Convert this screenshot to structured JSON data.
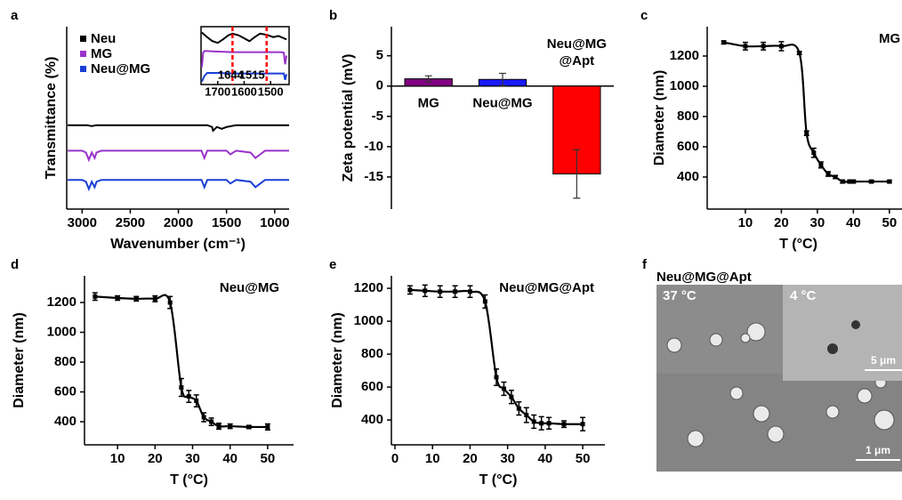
{
  "chart_data": [
    {
      "type": "spectrum",
      "panel_label": "a",
      "x_label": "Wavenumber (cm⁻¹)",
      "y_label": "Transmittance (%)",
      "xlim": [
        3160,
        850
      ],
      "xticks": [
        3000,
        2500,
        2000,
        1500,
        1000
      ],
      "ylim": [
        0,
        100
      ],
      "series": [
        {
          "name": "Neu",
          "color": "#000000",
          "x": [
            3150,
            3000,
            2950,
            2900,
            2850,
            2500,
            2000,
            1800,
            1700,
            1650,
            1640,
            1600,
            1550,
            1500,
            1400,
            1200,
            1000,
            850
          ],
          "values": [
            46,
            46,
            46,
            45.5,
            46,
            46,
            46,
            46,
            46,
            45,
            43,
            45,
            44,
            45,
            46,
            46,
            46,
            46
          ]
        },
        {
          "name": "MG",
          "color": "#9933cc",
          "x": [
            3150,
            3000,
            2960,
            2930,
            2900,
            2870,
            2850,
            2800,
            2500,
            2000,
            1760,
            1730,
            1700,
            1500,
            1460,
            1400,
            1250,
            1200,
            1150,
            1100,
            1000,
            850
          ],
          "values": [
            32,
            32,
            31,
            27,
            31,
            28,
            31,
            32,
            32,
            32,
            32,
            28,
            32,
            32,
            30,
            32,
            31,
            28,
            30,
            32,
            32,
            32
          ]
        },
        {
          "name": "Neu@MG",
          "color": "#1a3fd6",
          "x": [
            3150,
            3000,
            2960,
            2930,
            2900,
            2870,
            2850,
            2800,
            2500,
            2000,
            1760,
            1730,
            1700,
            1500,
            1460,
            1400,
            1250,
            1200,
            1150,
            1100,
            1000,
            850
          ],
          "values": [
            16,
            16,
            15,
            11,
            15,
            12,
            15,
            16,
            16,
            16,
            16,
            12,
            16,
            16,
            14,
            16,
            15,
            12,
            14,
            16,
            16,
            16
          ]
        }
      ],
      "inset": {
        "xlim": [
          1763,
          1430
        ],
        "xticks": [
          1700,
          1600,
          1500
        ],
        "ylim": [
          0,
          100
        ],
        "markers": [
          1644,
          1515
        ],
        "marker_color": "#ff0000",
        "series": [
          {
            "x": [
              1760,
              1740,
              1720,
              1700,
              1680,
              1660,
              1644,
              1620,
              1600,
              1580,
              1560,
              1540,
              1515,
              1490,
              1470,
              1450,
              1440
            ],
            "values": [
              90,
              82,
              75,
              72,
              78,
              85,
              88,
              85,
              80,
              75,
              82,
              88,
              86,
              82,
              84,
              80,
              78
            ]
          },
          {
            "x": [
              1760,
              1755,
              1750,
              1700,
              1644,
              1600,
              1515,
              1460,
              1450,
              1445,
              1440
            ],
            "values": [
              30,
              55,
              58,
              57,
              56,
              56,
              56,
              56,
              55,
              35,
              50
            ]
          },
          {
            "x": [
              1760,
              1750,
              1740,
              1700,
              1644,
              1600,
              1515,
              1460,
              1450,
              1445,
              1440
            ],
            "values": [
              5,
              15,
              20,
              20,
              19,
              19,
              19,
              19,
              19,
              8,
              18
            ]
          }
        ]
      }
    },
    {
      "type": "bar",
      "panel_label": "b",
      "y_label": "Zeta potential (mV)",
      "categories": [
        "MG",
        "Neu@MG",
        "Neu@MG@Apt"
      ],
      "values": [
        1.2,
        1.1,
        -14.5
      ],
      "errors": [
        0.5,
        1.0,
        4.0
      ],
      "colors": [
        "#800080",
        "#1a1aff",
        "#ff0000"
      ],
      "ylim": [
        -20.3,
        9.8
      ],
      "yticks": [
        5,
        0,
        -5,
        -10,
        -15
      ]
    },
    {
      "type": "line",
      "panel_label": "c",
      "title": "MG",
      "x_label": "T (°C)",
      "y_label": "Diameter (nm)",
      "xlim": [
        -0.6,
        53.5
      ],
      "xticks": [
        10,
        20,
        30,
        40,
        50
      ],
      "ylim": [
        188,
        1394
      ],
      "yticks": [
        400,
        600,
        800,
        1000,
        1200
      ],
      "color": "#000000",
      "x": [
        4,
        10,
        15,
        20,
        25,
        27,
        29,
        31,
        33,
        35,
        37,
        39,
        40,
        45,
        50
      ],
      "values": [
        1290,
        1265,
        1265,
        1265,
        1220,
        690,
        560,
        480,
        420,
        400,
        370,
        370,
        370,
        370,
        370
      ],
      "errors": [
        10,
        25,
        25,
        30,
        10,
        15,
        30,
        20,
        15,
        10,
        10,
        10,
        10,
        8,
        8
      ]
    },
    {
      "type": "line",
      "panel_label": "d",
      "title": "Neu@MG",
      "x_label": "T (°C)",
      "y_label": "Diameter (nm)",
      "xlim": [
        1.2,
        56.9
      ],
      "xticks": [
        10,
        20,
        30,
        40,
        50
      ],
      "ylim": [
        245,
        1379
      ],
      "yticks": [
        400,
        600,
        800,
        1000,
        1200
      ],
      "color": "#000000",
      "x": [
        4,
        10,
        15,
        20,
        24,
        27,
        29,
        31,
        33,
        35,
        37,
        40,
        45,
        50
      ],
      "values": [
        1240,
        1230,
        1225,
        1225,
        1200,
        630,
        570,
        540,
        430,
        400,
        370,
        370,
        365,
        365
      ],
      "errors": [
        25,
        15,
        15,
        20,
        40,
        60,
        40,
        40,
        30,
        25,
        20,
        15,
        10,
        20
      ]
    },
    {
      "type": "line",
      "panel_label": "e",
      "title": "Neu@MG@Apt",
      "x_label": "T (°C)",
      "y_label": "Diameter (nm)",
      "xlim": [
        -0.95,
        55.9
      ],
      "xticks": [
        0,
        10,
        20,
        30,
        40,
        50
      ],
      "ylim": [
        249,
        1276
      ],
      "yticks": [
        400,
        600,
        800,
        1000,
        1200
      ],
      "color": "#000000",
      "x": [
        4,
        8,
        12,
        16,
        20,
        24,
        27,
        29,
        31,
        33,
        35,
        37,
        39,
        41,
        45,
        50
      ],
      "values": [
        1190,
        1185,
        1180,
        1180,
        1180,
        1120,
        660,
        590,
        540,
        470,
        430,
        390,
        380,
        380,
        375,
        375
      ],
      "errors": [
        25,
        35,
        35,
        35,
        35,
        40,
        50,
        40,
        40,
        40,
        45,
        40,
        40,
        35,
        20,
        40
      ]
    }
  ],
  "image_panel": {
    "panel_label": "f",
    "title": "Neu@MG@Apt",
    "main_label": "37 °C",
    "inset_label": "4 °C",
    "inset_scale": "5 μm",
    "main_scale": "1 μm"
  }
}
